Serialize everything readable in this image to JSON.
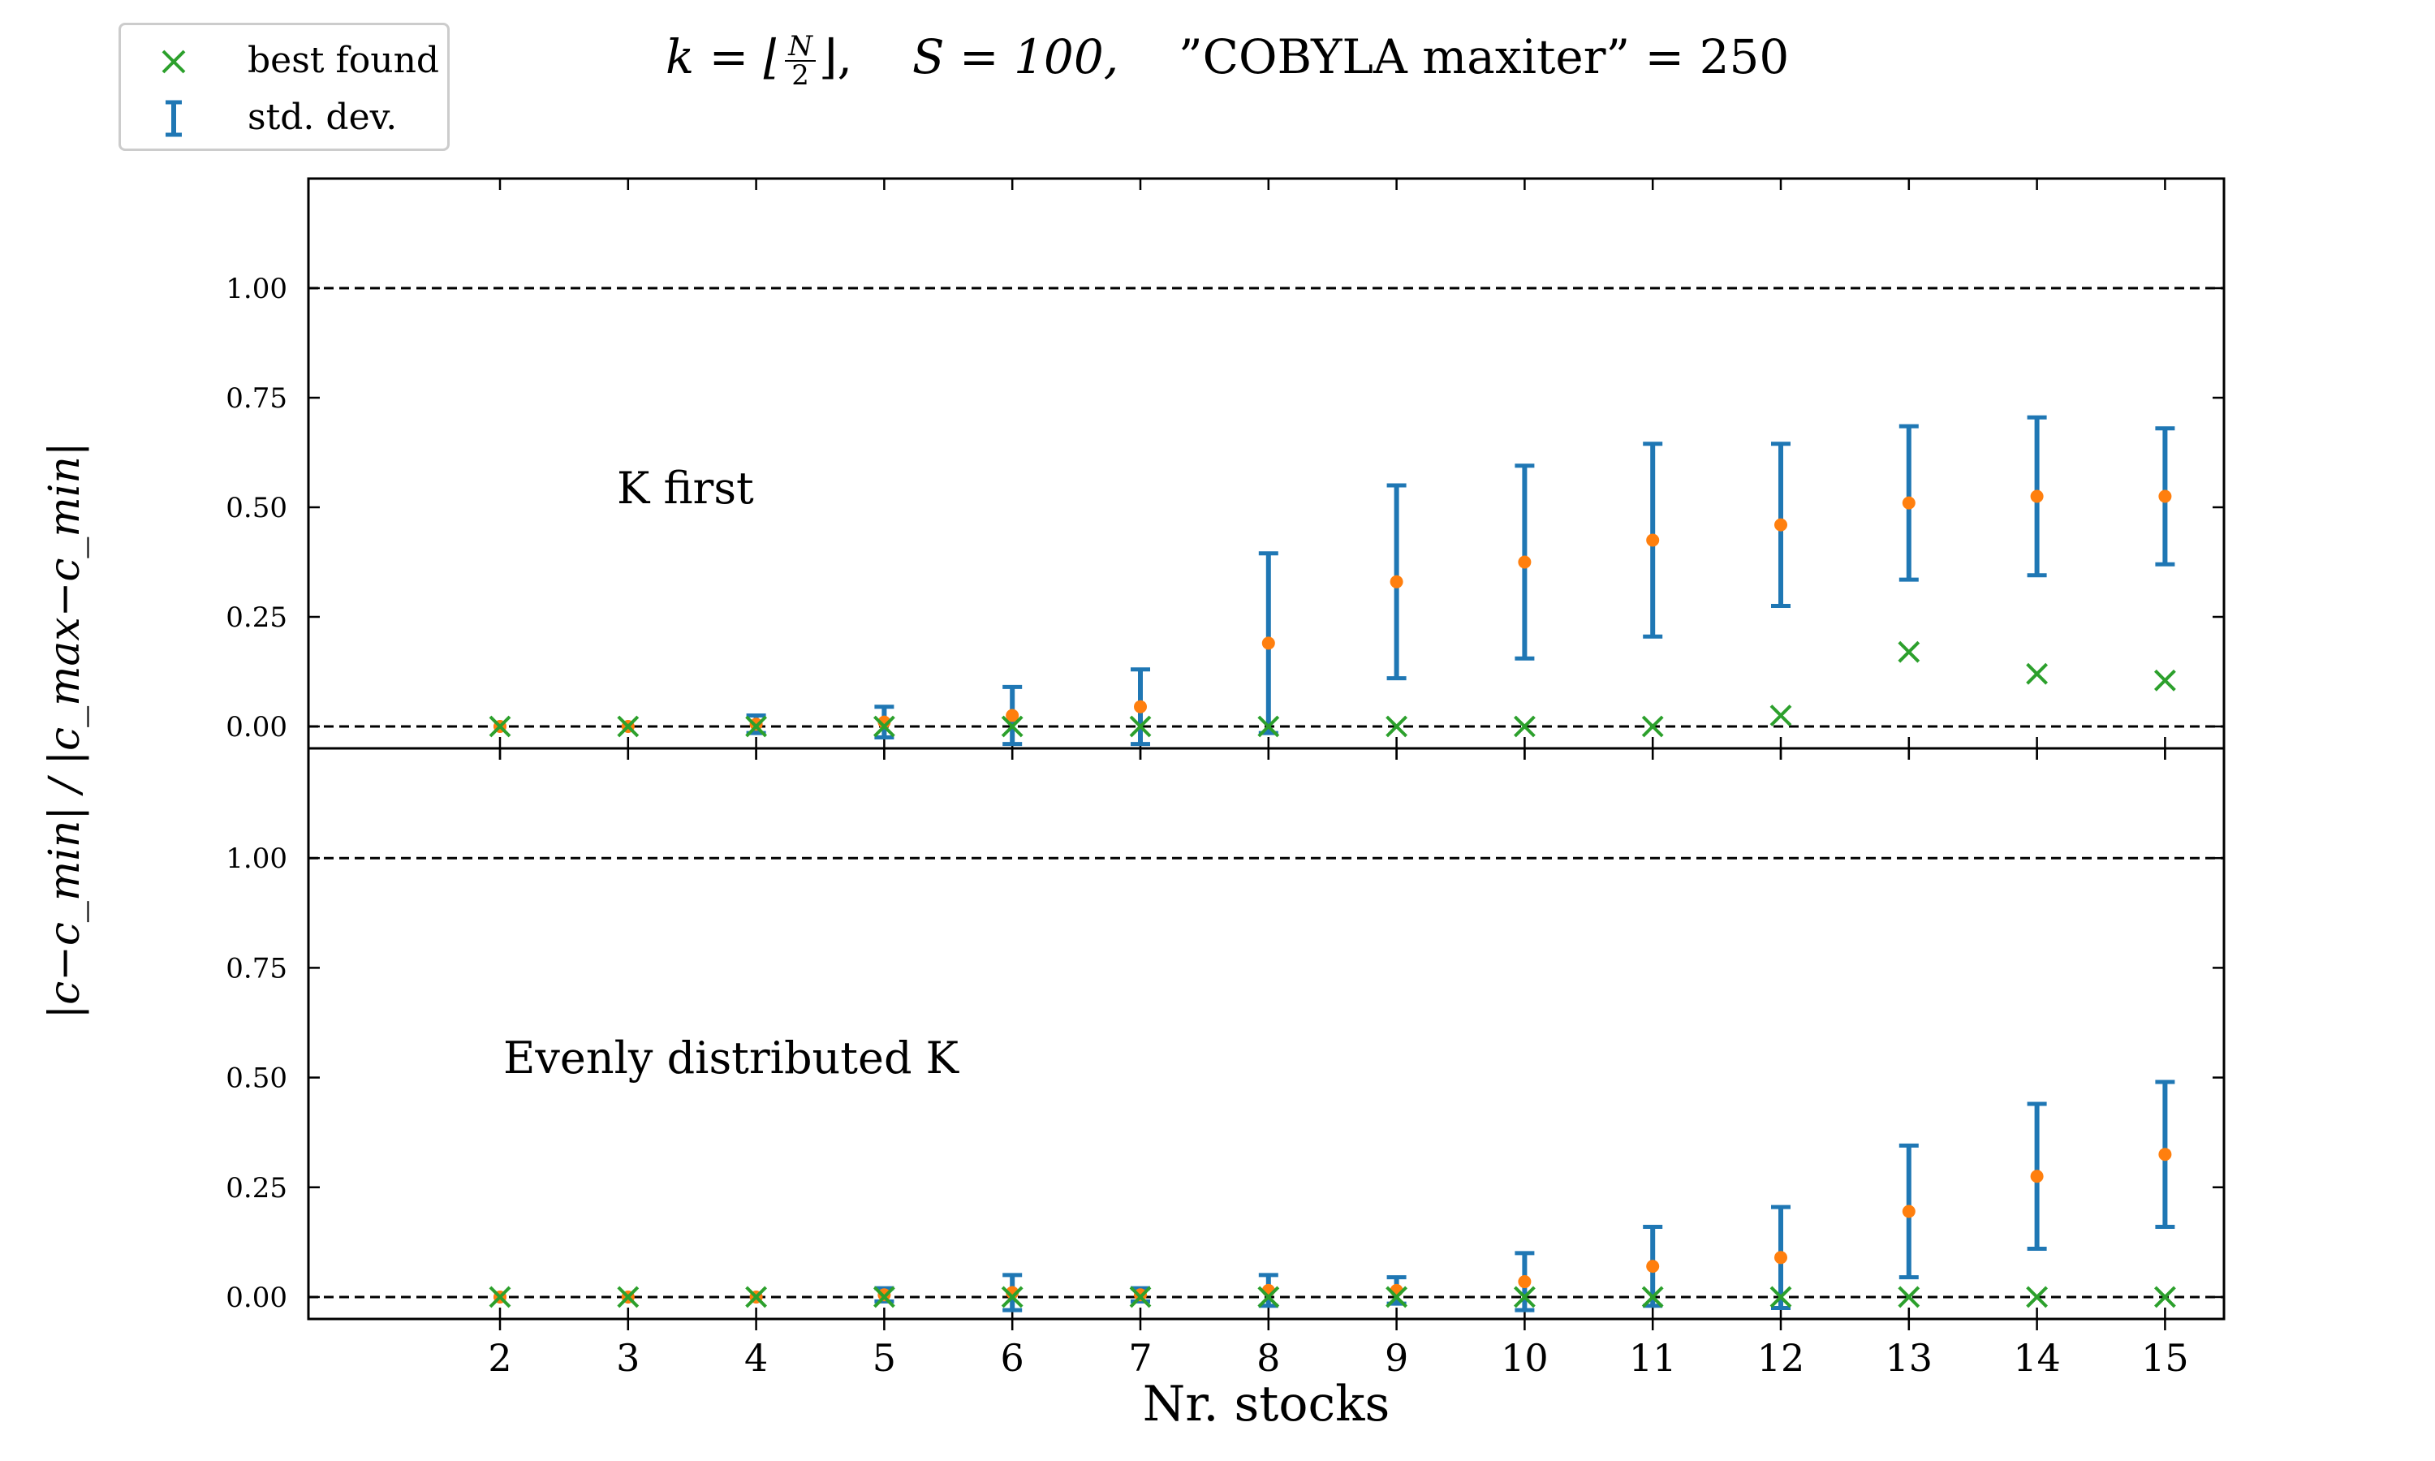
{
  "title": {
    "k_expr_prefix": "k = ⌊",
    "k_frac_num": "N",
    "k_frac_den": "2",
    "k_expr_suffix": "⌋,",
    "s_expr": "S = 100,",
    "cobyla_expr": "”COBYLA maxiter” = 250"
  },
  "legend": {
    "position": "top-left",
    "items": [
      {
        "label": "best found",
        "marker": "x-marker-icon",
        "color": "#2ca02c"
      },
      {
        "label": "std. dev.",
        "marker": "errorbar-icon",
        "color": "#1f77b4"
      }
    ]
  },
  "ylabel": "|c−c_min| / |c_max−c_min|",
  "colors": {
    "errorbar": "#1f77b4",
    "mean": "#ff7f0e",
    "best": "#2ca02c",
    "refline": "#000000"
  },
  "chart_data": [
    {
      "type": "scatter",
      "panel_label": "K first",
      "x": [
        2,
        3,
        4,
        5,
        6,
        7,
        8,
        9,
        10,
        11,
        12,
        13,
        14,
        15
      ],
      "ylim": [
        -0.05,
        1.25
      ],
      "yticks": [
        "0.00",
        "0.25",
        "0.50",
        "0.75",
        "1.00"
      ],
      "ytick_values": [
        0,
        0.25,
        0.5,
        0.75,
        1.0
      ],
      "reference_lines": [
        0,
        1
      ],
      "series": [
        {
          "name": "std. dev.",
          "kind": "errorbar",
          "mean": [
            0.0,
            0.0,
            0.005,
            0.01,
            0.025,
            0.045,
            0.19,
            0.33,
            0.375,
            0.425,
            0.46,
            0.51,
            0.525,
            0.525
          ],
          "std": [
            0.0,
            0.0,
            0.02,
            0.035,
            0.065,
            0.085,
            0.205,
            0.22,
            0.22,
            0.22,
            0.185,
            0.175,
            0.18,
            0.155
          ]
        },
        {
          "name": "best found",
          "kind": "marker",
          "values": [
            0,
            0,
            0,
            0,
            0,
            0,
            0,
            0,
            0,
            0,
            0.025,
            0.17,
            0.12,
            0.105
          ]
        }
      ]
    },
    {
      "type": "scatter",
      "panel_label": "Evenly distributed K",
      "x": [
        2,
        3,
        4,
        5,
        6,
        7,
        8,
        9,
        10,
        11,
        12,
        13,
        14,
        15
      ],
      "xlabel": "Nr. stocks",
      "xticks": [
        "2",
        "3",
        "4",
        "5",
        "6",
        "7",
        "8",
        "9",
        "10",
        "11",
        "12",
        "13",
        "14",
        "15"
      ],
      "ylim": [
        -0.05,
        1.25
      ],
      "yticks": [
        "0.00",
        "0.25",
        "0.50",
        "0.75",
        "1.00"
      ],
      "ytick_values": [
        0,
        0.25,
        0.5,
        0.75,
        1.0
      ],
      "reference_lines": [
        0,
        1
      ],
      "series": [
        {
          "name": "std. dev.",
          "kind": "errorbar",
          "mean": [
            0.0,
            0.0,
            0.0,
            0.005,
            0.01,
            0.005,
            0.015,
            0.015,
            0.035,
            0.07,
            0.09,
            0.195,
            0.275,
            0.325
          ],
          "std": [
            0.0,
            0.0,
            0.0,
            0.015,
            0.04,
            0.015,
            0.035,
            0.03,
            0.065,
            0.09,
            0.115,
            0.15,
            0.165,
            0.165
          ]
        },
        {
          "name": "best found",
          "kind": "marker",
          "values": [
            0,
            0,
            0,
            0,
            0,
            0,
            0,
            0,
            0,
            0,
            0,
            0,
            0,
            0
          ]
        }
      ]
    }
  ]
}
